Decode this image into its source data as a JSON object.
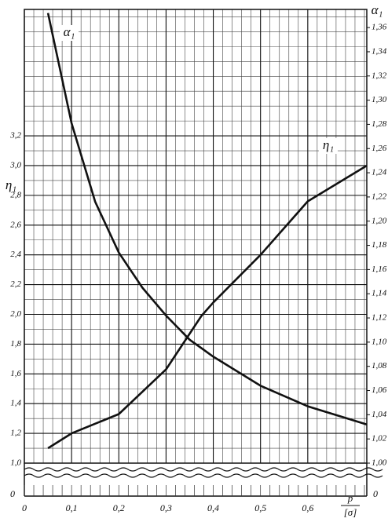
{
  "chart_data": {
    "type": "line",
    "ylabel": "η₁",
    "y2label": "α₁",
    "xlabel": {
      "numerator": "p",
      "denominator": "[σ]"
    },
    "break_label": "0",
    "xlim": [
      0,
      0.725
    ],
    "ylim": [
      1.0,
      4.05
    ],
    "y2lim": [
      1.0,
      1.375
    ],
    "xticks": [
      0,
      {
        "value": 0.1,
        "label": "0,1"
      },
      {
        "value": 0.2,
        "label": "0,2"
      },
      {
        "value": 0.3,
        "label": "0,3"
      },
      {
        "value": 0.4,
        "label": "0,4"
      },
      {
        "value": 0.5,
        "label": "0,5"
      },
      {
        "value": 0.6,
        "label": "0,6"
      }
    ],
    "yticks": [
      {
        "value": 1.0,
        "label": "1,0"
      },
      {
        "value": 1.2,
        "label": "1,2"
      },
      {
        "value": 1.4,
        "label": "1,4"
      },
      {
        "value": 1.6,
        "label": "1,6"
      },
      {
        "value": 1.8,
        "label": "1,8"
      },
      {
        "value": 2.0,
        "label": "2,0"
      },
      {
        "value": 2.2,
        "label": "2,2"
      },
      {
        "value": 2.4,
        "label": "2,4"
      },
      {
        "value": 2.6,
        "label": "2,6"
      },
      {
        "value": 2.8,
        "label": "2,8"
      },
      {
        "value": 3.0,
        "label": "3,0"
      },
      {
        "value": 3.2,
        "label": "3,2"
      }
    ],
    "y2ticks": [
      {
        "value": 1.0,
        "label": "1,00"
      },
      {
        "value": 1.02,
        "label": "1,02"
      },
      {
        "value": 1.04,
        "label": "1,04"
      },
      {
        "value": 1.06,
        "label": "1,06"
      },
      {
        "value": 1.08,
        "label": "1,08"
      },
      {
        "value": 1.1,
        "label": "1,10"
      },
      {
        "value": 1.12,
        "label": "1,12"
      },
      {
        "value": 1.14,
        "label": "1,14"
      },
      {
        "value": 1.16,
        "label": "1,16"
      },
      {
        "value": 1.18,
        "label": "1,18"
      },
      {
        "value": 1.2,
        "label": "1,20"
      },
      {
        "value": 1.22,
        "label": "1,22"
      },
      {
        "value": 1.24,
        "label": "1,24"
      },
      {
        "value": 1.26,
        "label": "1,26"
      },
      {
        "value": 1.28,
        "label": "1,28"
      },
      {
        "value": 1.3,
        "label": "1,30"
      },
      {
        "value": 1.32,
        "label": "1,32"
      },
      {
        "value": 1.34,
        "label": "1,34"
      },
      {
        "value": 1.36,
        "label": "1,36"
      }
    ],
    "grid": true,
    "series": [
      {
        "name": "η₁",
        "color": "#111111",
        "x": [
          0.05,
          0.1,
          0.2,
          0.3,
          0.375,
          0.4,
          0.5,
          0.6,
          0.725
        ],
        "values": [
          1.1,
          1.2,
          1.33,
          1.63,
          1.99,
          2.08,
          2.4,
          2.76,
          3.0
        ]
      },
      {
        "name": "α₁",
        "color": "#111111",
        "axis": "y2",
        "x": [
          0.05,
          0.1,
          0.15,
          0.2,
          0.25,
          0.3,
          0.35,
          0.4,
          0.5,
          0.6,
          0.725
        ],
        "values": [
          1.372,
          1.281,
          1.216,
          1.174,
          1.145,
          1.122,
          1.102,
          1.088,
          1.064,
          1.047,
          1.032
        ]
      }
    ]
  }
}
